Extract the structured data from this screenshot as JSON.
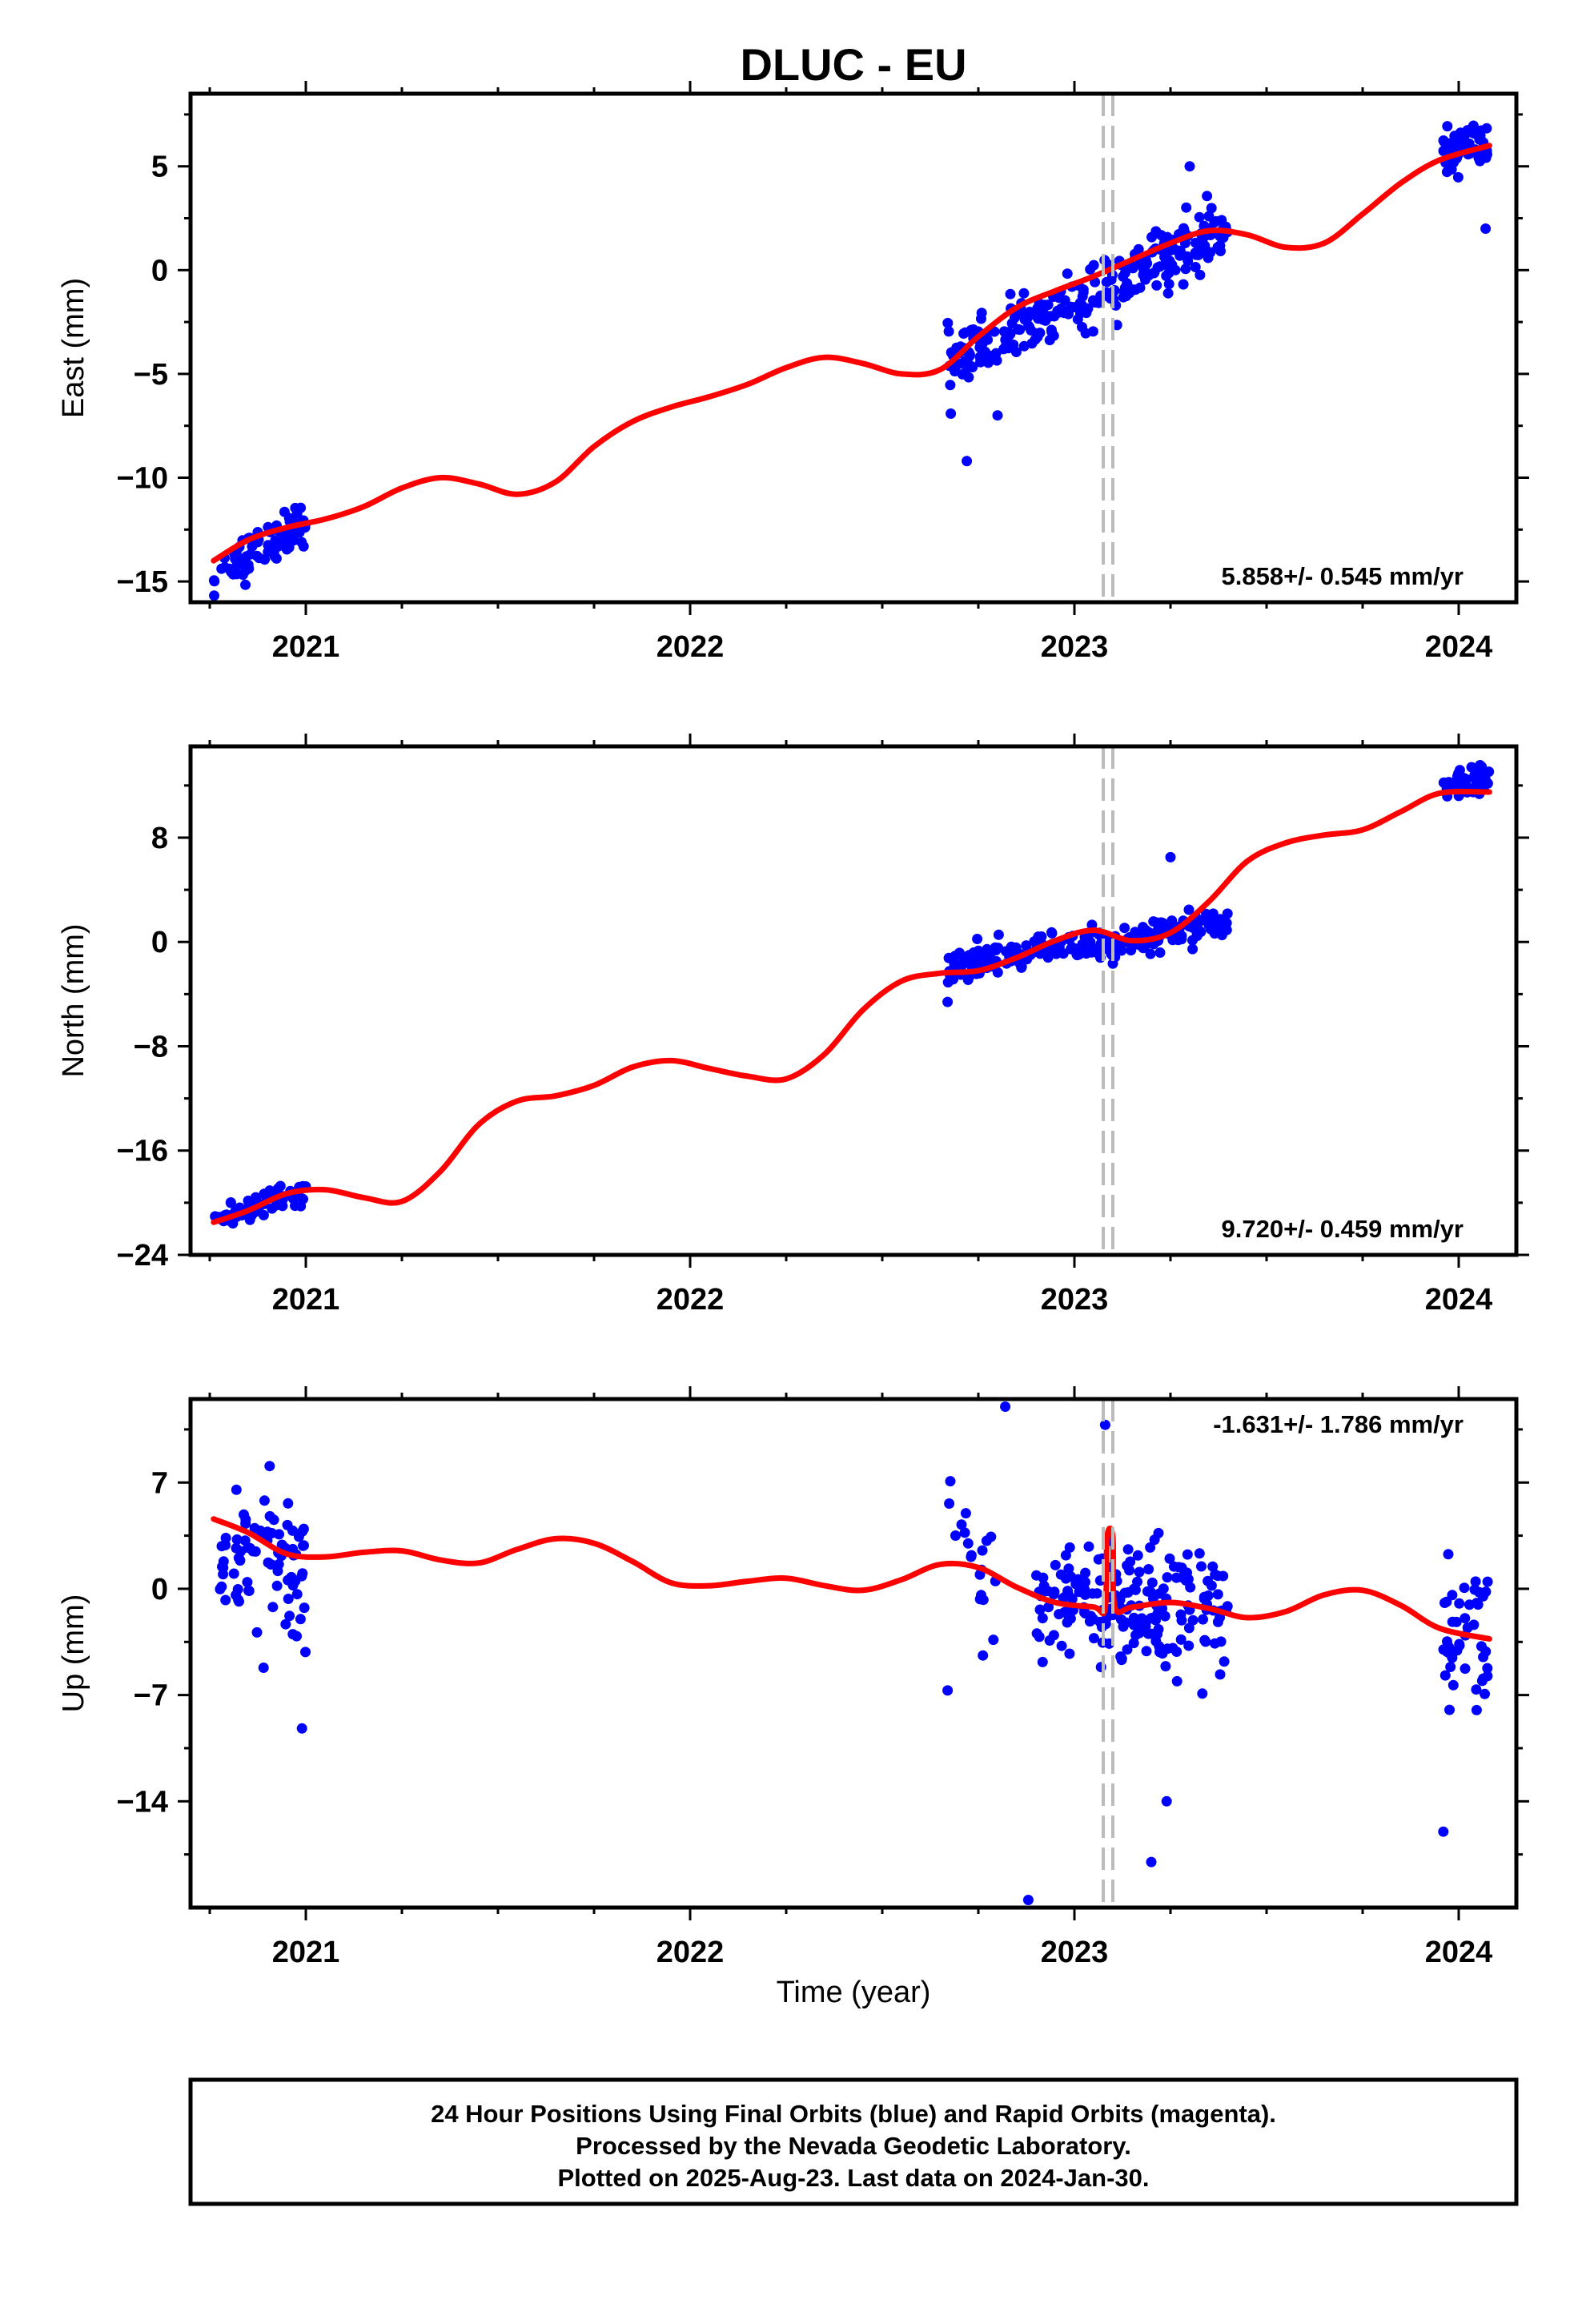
{
  "title": "DLUC - EU",
  "xlabel": "Time (year)",
  "caption": [
    "24 Hour Positions Using Final Orbits (blue) and Rapid Orbits (magenta).",
    "Processed by the Nevada Geodetic Laboratory.",
    "Plotted on 2025-Aug-23. Last data on 2024-Jan-30."
  ],
  "colors": {
    "points": "#0000ff",
    "fit": "#ff0000",
    "event_line": "#bbbbbb",
    "frame": "#000000"
  },
  "chart_data": [
    {
      "type": "scatter",
      "ylabel": "East (mm)",
      "rate": "5.858+/- 0.545 mm/yr",
      "xlim": [
        2020.7,
        2024.15
      ],
      "ylim": [
        -16,
        8.5
      ],
      "yticks": [
        5,
        0,
        -5,
        -10,
        -15
      ],
      "yticks_minor": [
        7.5,
        2.5,
        -2.5,
        -7.5,
        -12.5
      ],
      "xticks": [
        2021,
        2022,
        2023,
        2024
      ],
      "event_lines": [
        2023.075,
        2023.1
      ],
      "clusters": [
        {
          "x": [
            2020.76,
            2021.0
          ],
          "trend": [
            -14.8,
            0.5,
            -12.0,
            0.5
          ],
          "spread": 1.0,
          "n": 78
        },
        {
          "x": [
            2022.67,
            2023.4
          ],
          "trend": [
            -4.5,
            0.1,
            2.0,
            0.5
          ],
          "spread": 1.3,
          "n": 270
        },
        {
          "x": [
            2023.96,
            2024.08
          ],
          "trend": [
            5.7,
            0.1,
            6.0,
            0.1
          ],
          "spread": 1.0,
          "n": 50
        }
      ],
      "outliers": [
        [
          2022.72,
          -9.2
        ],
        [
          2024.07,
          2.0
        ],
        [
          2022.8,
          -7.0
        ],
        [
          2023.3,
          5.0
        ]
      ],
      "fit": {
        "x": [
          2020.76,
          2020.85,
          2020.95,
          2021.05,
          2021.15,
          2021.25,
          2021.35,
          2021.45,
          2021.55,
          2021.65,
          2021.75,
          2021.85,
          2021.95,
          2022.05,
          2022.15,
          2022.25,
          2022.35,
          2022.45,
          2022.55,
          2022.65,
          2022.75,
          2022.85,
          2022.95,
          2023.05,
          2023.15,
          2023.25,
          2023.35,
          2023.45,
          2023.55,
          2023.65,
          2023.75,
          2023.85,
          2023.95,
          2024.08
        ],
        "y": [
          -14.0,
          -13.0,
          -12.4,
          -12.0,
          -11.4,
          -10.5,
          -10.0,
          -10.3,
          -10.8,
          -10.2,
          -8.5,
          -7.3,
          -6.6,
          -6.1,
          -5.5,
          -4.7,
          -4.2,
          -4.5,
          -5.0,
          -4.8,
          -3.2,
          -1.8,
          -1.0,
          -0.3,
          0.5,
          1.3,
          1.9,
          1.7,
          1.1,
          1.3,
          2.7,
          4.2,
          5.3,
          6.0
        ]
      }
    },
    {
      "type": "scatter",
      "ylabel": "North (mm)",
      "rate": "9.720+/- 0.459 mm/yr",
      "xlim": [
        2020.7,
        2024.15
      ],
      "ylim": [
        -24,
        15
      ],
      "yticks": [
        8,
        0,
        -8,
        -16,
        -24
      ],
      "yticks_minor": [
        12,
        4,
        -4,
        -12,
        -20
      ],
      "xticks": [
        2021,
        2022,
        2023,
        2024
      ],
      "event_lines": [
        2023.075,
        2023.1
      ],
      "clusters": [
        {
          "x": [
            2020.76,
            2021.0
          ],
          "trend": [
            -21.5,
            0.5,
            -19.0,
            0.5
          ],
          "spread": 0.8,
          "n": 70
        },
        {
          "x": [
            2022.67,
            2023.4
          ],
          "trend": [
            -2.0,
            0.1,
            1.5,
            0.5
          ],
          "spread": 1.1,
          "n": 270
        },
        {
          "x": [
            2023.96,
            2024.08
          ],
          "trend": [
            12.0,
            0.1,
            12.5,
            0.1
          ],
          "spread": 0.9,
          "n": 50
        }
      ],
      "outliers": [
        [
          2022.67,
          -4.6
        ],
        [
          2023.25,
          6.5
        ]
      ],
      "fit": {
        "x": [
          2020.76,
          2020.85,
          2020.95,
          2021.05,
          2021.15,
          2021.25,
          2021.35,
          2021.45,
          2021.55,
          2021.65,
          2021.75,
          2021.85,
          2021.95,
          2022.05,
          2022.15,
          2022.25,
          2022.35,
          2022.45,
          2022.55,
          2022.65,
          2022.75,
          2022.85,
          2022.95,
          2023.05,
          2023.15,
          2023.25,
          2023.35,
          2023.45,
          2023.55,
          2023.65,
          2023.75,
          2023.85,
          2023.95,
          2024.08
        ],
        "y": [
          -21.5,
          -20.6,
          -19.3,
          -19.0,
          -19.6,
          -19.9,
          -17.6,
          -14.0,
          -12.2,
          -11.8,
          -11.0,
          -9.6,
          -9.1,
          -9.7,
          -10.3,
          -10.5,
          -8.6,
          -5.2,
          -3.0,
          -2.4,
          -2.2,
          -1.2,
          0.1,
          0.9,
          0.1,
          0.7,
          3.1,
          6.2,
          7.6,
          8.2,
          8.6,
          10.0,
          11.4,
          11.5
        ]
      }
    },
    {
      "type": "scatter",
      "ylabel": "Up (mm)",
      "rate": "-1.631+/- 1.786 mm/yr",
      "xlim": [
        2020.7,
        2024.15
      ],
      "ylim": [
        -21,
        12.5
      ],
      "yticks": [
        7,
        0,
        -7,
        -14
      ],
      "yticks_minor": [
        10.5,
        3.5,
        -3.5,
        -10.5,
        -17.5
      ],
      "xticks": [
        2021,
        2022,
        2023,
        2024
      ],
      "event_lines": [
        2023.075,
        2023.1
      ],
      "clusters": [
        {
          "x": [
            2020.76,
            2021.0
          ],
          "trend": [
            3.0,
            0.5,
            1.0,
            0.5
          ],
          "spread": 4.5,
          "n": 80
        },
        {
          "x": [
            2022.67,
            2022.8
          ],
          "trend": [
            4.0,
            0.5,
            1.0,
            0.5
          ],
          "spread": 4.0,
          "n": 20
        },
        {
          "x": [
            2022.9,
            2023.4
          ],
          "trend": [
            -1.0,
            0.5,
            -1.5,
            0.5
          ],
          "spread": 3.8,
          "n": 200
        },
        {
          "x": [
            2023.96,
            2024.08
          ],
          "trend": [
            -3.0,
            0.5,
            -3.0,
            0.5
          ],
          "spread": 4.5,
          "n": 45
        }
      ],
      "outliers": [
        [
          2022.88,
          -20.5
        ],
        [
          2023.2,
          -18.0
        ],
        [
          2023.08,
          10.8
        ],
        [
          2022.82,
          12.0
        ],
        [
          2023.24,
          -14.0
        ],
        [
          2020.99,
          -9.2
        ],
        [
          2020.89,
          -5.2
        ],
        [
          2022.67,
          -6.7
        ],
        [
          2023.96,
          -16.0
        ]
      ],
      "fit": {
        "x": [
          2020.76,
          2020.85,
          2020.95,
          2021.05,
          2021.15,
          2021.25,
          2021.35,
          2021.45,
          2021.55,
          2021.65,
          2021.75,
          2021.85,
          2021.95,
          2022.05,
          2022.15,
          2022.25,
          2022.35,
          2022.45,
          2022.55,
          2022.65,
          2022.75,
          2022.85,
          2022.95,
          2023.05,
          2023.08,
          2023.085,
          2023.1,
          2023.105,
          2023.15,
          2023.25,
          2023.35,
          2023.45,
          2023.55,
          2023.65,
          2023.75,
          2023.85,
          2023.95,
          2024.08
        ],
        "y": [
          4.6,
          3.7,
          2.3,
          2.1,
          2.4,
          2.5,
          1.9,
          1.7,
          2.6,
          3.3,
          3.0,
          1.8,
          0.4,
          0.2,
          0.5,
          0.7,
          0.2,
          -0.1,
          0.6,
          1.6,
          1.4,
          0.1,
          -0.9,
          -1.2,
          -1.3,
          3.4,
          3.4,
          -1.2,
          -1.2,
          -0.9,
          -1.3,
          -1.9,
          -1.5,
          -0.4,
          -0.1,
          -1.1,
          -2.6,
          -3.3
        ]
      }
    }
  ]
}
